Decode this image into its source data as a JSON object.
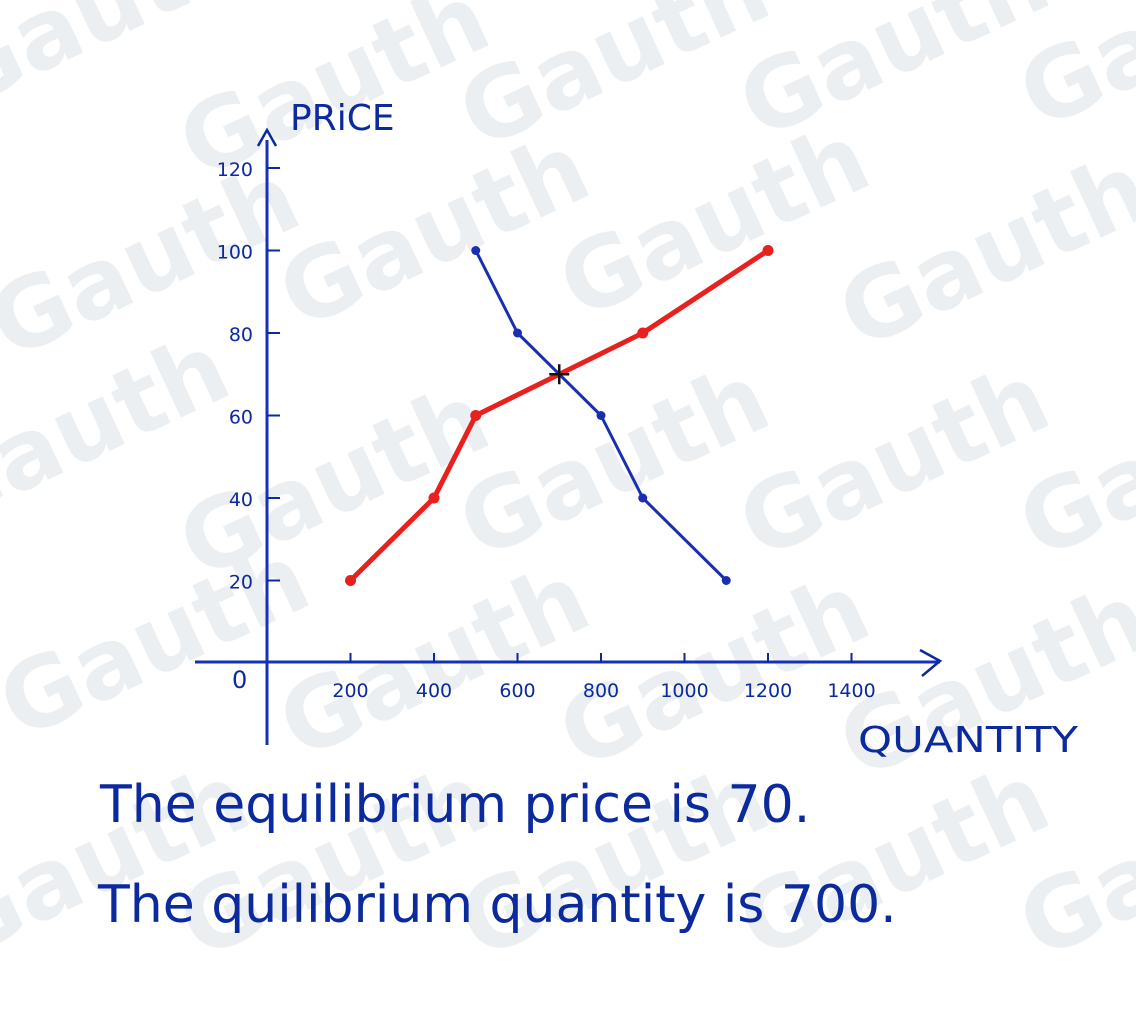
{
  "watermark_text": "Gauth",
  "chart_data": {
    "type": "line",
    "ylabel": "PRiCE",
    "xlabel": "QUANTITY",
    "origin_label": "0",
    "xlim": [
      0,
      1400
    ],
    "ylim": [
      0,
      120
    ],
    "x_ticks": [
      {
        "value": 200,
        "label": "200"
      },
      {
        "value": 400,
        "label": "400"
      },
      {
        "value": 600,
        "label": "600"
      },
      {
        "value": 800,
        "label": "800"
      },
      {
        "value": 1000,
        "label": "1000"
      },
      {
        "value": 1200,
        "label": "1200"
      },
      {
        "value": 1400,
        "label": "1400"
      }
    ],
    "y_ticks": [
      {
        "value": 20,
        "label": "20"
      },
      {
        "value": 40,
        "label": "40"
      },
      {
        "value": 60,
        "label": "60"
      },
      {
        "value": 80,
        "label": "80"
      },
      {
        "value": 100,
        "label": "100"
      },
      {
        "value": 120,
        "label": "120"
      }
    ],
    "series": [
      {
        "color": "#e8201e",
        "points": [
          [
            200,
            20
          ],
          [
            400,
            40
          ],
          [
            500,
            60
          ],
          [
            900,
            80
          ],
          [
            1200,
            100
          ]
        ]
      },
      {
        "color": "#1a2fb0",
        "points": [
          [
            500,
            100
          ],
          [
            600,
            80
          ],
          [
            800,
            60
          ],
          [
            900,
            40
          ],
          [
            1100,
            20
          ]
        ]
      }
    ],
    "equilibrium": {
      "x": 700,
      "y": 70
    }
  },
  "answer_lines": [
    "The equilibrium price is 70.",
    "The quilibrium quantity is 700."
  ],
  "colors": {
    "ink": "#0b2a9e",
    "axis": "#1630b8"
  }
}
